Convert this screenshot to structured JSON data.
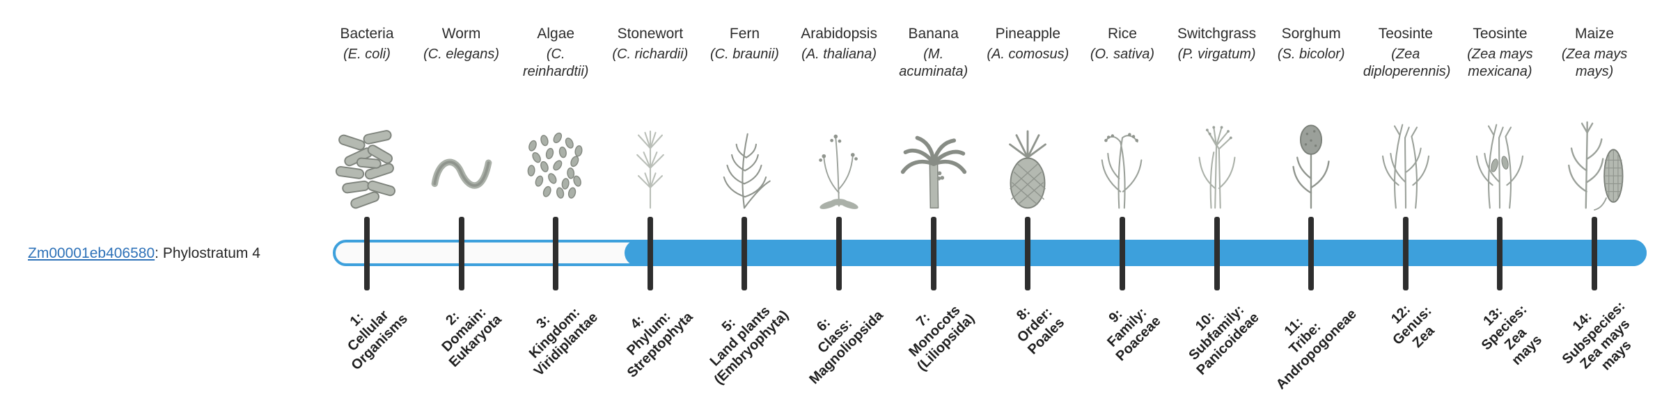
{
  "figure": {
    "gene_link": "Zm00001eb406580",
    "gene_suffix": ": Phylostratum 4",
    "bar_color": "#3da0dc",
    "tick_color": "#2e2e2e",
    "highlight_start_stratum": 4
  },
  "organisms": [
    {
      "name": "Bacteria",
      "sci": "(E. coli)",
      "icon": "bacteria-icon"
    },
    {
      "name": "Worm",
      "sci": "(C. elegans)",
      "icon": "worm-icon"
    },
    {
      "name": "Algae",
      "sci": "(C. reinhardtii)",
      "icon": "algae-icon"
    },
    {
      "name": "Stonewort",
      "sci": "(C. richardii)",
      "icon": "stonewort-icon"
    },
    {
      "name": "Fern",
      "sci": "(C. braunii)",
      "icon": "fern-icon"
    },
    {
      "name": "Arabidopsis",
      "sci": "(A. thaliana)",
      "icon": "arabidopsis-icon"
    },
    {
      "name": "Banana",
      "sci": "(M. acuminata)",
      "icon": "banana-icon"
    },
    {
      "name": "Pineapple",
      "sci": "(A. comosus)",
      "icon": "pineapple-icon"
    },
    {
      "name": "Rice",
      "sci": "(O. sativa)",
      "icon": "rice-icon"
    },
    {
      "name": "Switchgrass",
      "sci": "(P. virgatum)",
      "icon": "switchgrass-icon"
    },
    {
      "name": "Sorghum",
      "sci": "(S. bicolor)",
      "icon": "sorghum-icon"
    },
    {
      "name": "Teosinte",
      "sci": "(Zea diploperennis)",
      "icon": "teosinte-icon"
    },
    {
      "name": "Teosinte",
      "sci": "(Zea mays mexicana)",
      "icon": "teosinte2-icon"
    },
    {
      "name": "Maize",
      "sci": "(Zea mays mays)",
      "icon": "maize-icon"
    }
  ],
  "strata": [
    {
      "label": "1:\nCellular\nOrganisms"
    },
    {
      "label": "2:\nDomain:\nEukaryota"
    },
    {
      "label": "3:\nKingdom:\nViridiplantae"
    },
    {
      "label": "4:\nPhylum:\nStreptophyta"
    },
    {
      "label": "5:\nLand plants\n(Embryophyta)"
    },
    {
      "label": "6:\nClass:\nMagnoliopsida"
    },
    {
      "label": "7:\nMonocots\n(Liliopsida)"
    },
    {
      "label": "8:\nOrder:\nPoales"
    },
    {
      "label": "9:\nFamily:\nPoaceae"
    },
    {
      "label": "10:\nSubfamily:\nPanicoideae"
    },
    {
      "label": "11:\nTribe:\nAndropogoneae"
    },
    {
      "label": "12:\nGenus:\nZea"
    },
    {
      "label": "13:\nSpecies:\nZea\nmays"
    },
    {
      "label": "14:\nSubspecies:\nZea mays\nmays"
    }
  ]
}
